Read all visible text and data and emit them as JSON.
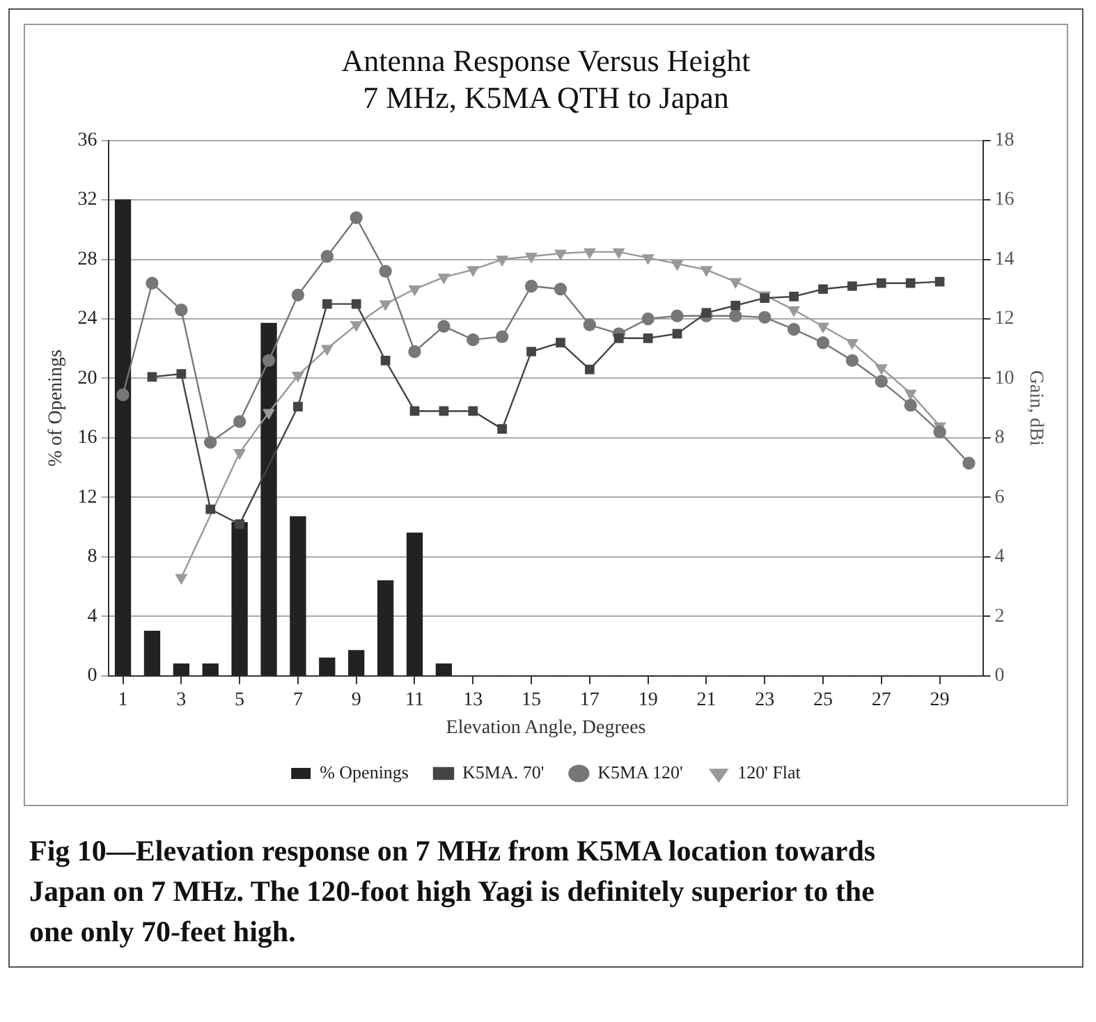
{
  "chart_data": {
    "type": "bar",
    "title": "Antenna Response Versus Height",
    "subtitle": "7 MHz, K5MA QTH to Japan",
    "xlabel": "Elevation Angle, Degrees",
    "ylabel": "% of Openings",
    "y2label": "Gain, dBi",
    "x": [
      1,
      2,
      3,
      4,
      5,
      6,
      7,
      8,
      9,
      10,
      11,
      12,
      13,
      14,
      15,
      16,
      17,
      18,
      19,
      20,
      21,
      22,
      23,
      24,
      25,
      26,
      27,
      28,
      29,
      30
    ],
    "xlim": [
      0.5,
      30.5
    ],
    "xticks": [
      1,
      3,
      5,
      7,
      9,
      11,
      13,
      15,
      17,
      19,
      21,
      23,
      25,
      27,
      29
    ],
    "series": [
      {
        "name": "% Openings",
        "color": "#222222",
        "values": [
          32,
          3.0,
          0.8,
          0.8,
          10.3,
          23.7,
          10.7,
          1.2,
          1.7,
          6.4,
          9.6,
          0.8,
          0,
          0,
          0,
          0,
          0,
          0,
          0,
          0,
          0,
          0,
          0,
          0,
          0,
          0,
          0,
          0,
          0,
          0
        ]
      },
      {
        "name": "K5MA. 70'",
        "type": "line",
        "axis": "y2",
        "marker": "square",
        "color": "#444444",
        "values": [
          null,
          10.05,
          10.15,
          5.6,
          5.1,
          null,
          9.05,
          12.5,
          12.5,
          10.6,
          8.9,
          8.9,
          8.9,
          8.3,
          10.9,
          11.2,
          10.3,
          11.35,
          11.35,
          11.5,
          12.2,
          12.45,
          12.7,
          12.75,
          13.0,
          13.1,
          13.2,
          13.2,
          13.25,
          null
        ]
      },
      {
        "name": "K5MA 120'",
        "type": "line",
        "axis": "y2",
        "marker": "circle",
        "color": "#777777",
        "values": [
          9.45,
          13.2,
          12.3,
          7.85,
          8.55,
          10.6,
          12.8,
          14.1,
          15.4,
          13.6,
          10.9,
          11.75,
          11.3,
          11.4,
          13.1,
          13.0,
          11.8,
          11.5,
          12.0,
          12.1,
          12.1,
          12.1,
          12.05,
          11.65,
          11.2,
          10.6,
          9.9,
          9.1,
          8.2,
          7.15
        ]
      },
      {
        "name": "120' Flat",
        "type": "line",
        "axis": "y2",
        "marker": "triangle",
        "color": "#999999",
        "values": [
          null,
          null,
          3.3,
          null,
          7.5,
          8.85,
          10.1,
          11.0,
          11.8,
          12.5,
          13.0,
          13.4,
          13.65,
          14.0,
          14.1,
          14.2,
          14.25,
          14.25,
          14.05,
          13.85,
          13.65,
          13.25,
          12.8,
          12.3,
          11.75,
          11.2,
          10.35,
          9.5,
          8.4,
          null
        ]
      }
    ],
    "ylim": [
      0,
      36
    ],
    "yticks": [
      0,
      4,
      8,
      12,
      16,
      20,
      24,
      28,
      32,
      36
    ],
    "y2lim": [
      0,
      18
    ],
    "y2ticks": [
      0,
      2,
      4,
      6,
      8,
      10,
      12,
      14,
      16,
      18
    ],
    "grid": "y",
    "legend": "bottom",
    "annotations": [
      "Fig 10—Elevation response on 7 MHz from K5MA location towards Japan on 7 MHz. The 120-foot high Yagi is definitely superior to the one only 70-feet high."
    ]
  }
}
